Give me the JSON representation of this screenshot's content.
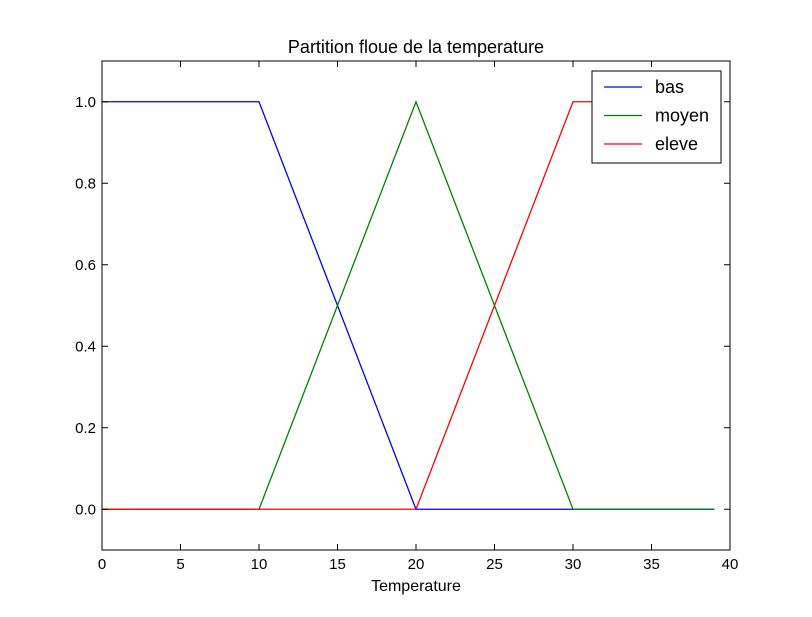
{
  "chart_data": {
    "type": "line",
    "title": "Partition floue de la temperature",
    "xlabel": "Temperature",
    "ylabel": "",
    "xlim": [
      0,
      40
    ],
    "ylim": [
      -0.1,
      1.1
    ],
    "xticks": [
      0,
      5,
      10,
      15,
      20,
      25,
      30,
      35,
      40
    ],
    "yticks": [
      0.0,
      0.2,
      0.4,
      0.6,
      0.8,
      1.0
    ],
    "xtick_labels": [
      "0",
      "5",
      "10",
      "15",
      "20",
      "25",
      "30",
      "35",
      "40"
    ],
    "ytick_labels": [
      "0.0",
      "0.2",
      "0.4",
      "0.6",
      "0.8",
      "1.0"
    ],
    "grid": false,
    "legend_position": "top-right",
    "series": [
      {
        "name": "bas",
        "color": "#0000ff",
        "x": [
          0,
          10,
          20,
          39
        ],
        "y": [
          1,
          1,
          0,
          0
        ]
      },
      {
        "name": "moyen",
        "color": "#008000",
        "x": [
          0,
          10,
          20,
          30,
          39
        ],
        "y": [
          0,
          0,
          1,
          0,
          0
        ]
      },
      {
        "name": "eleve",
        "color": "#ff0000",
        "x": [
          0,
          20,
          30,
          39
        ],
        "y": [
          0,
          0,
          1,
          1
        ]
      }
    ]
  }
}
